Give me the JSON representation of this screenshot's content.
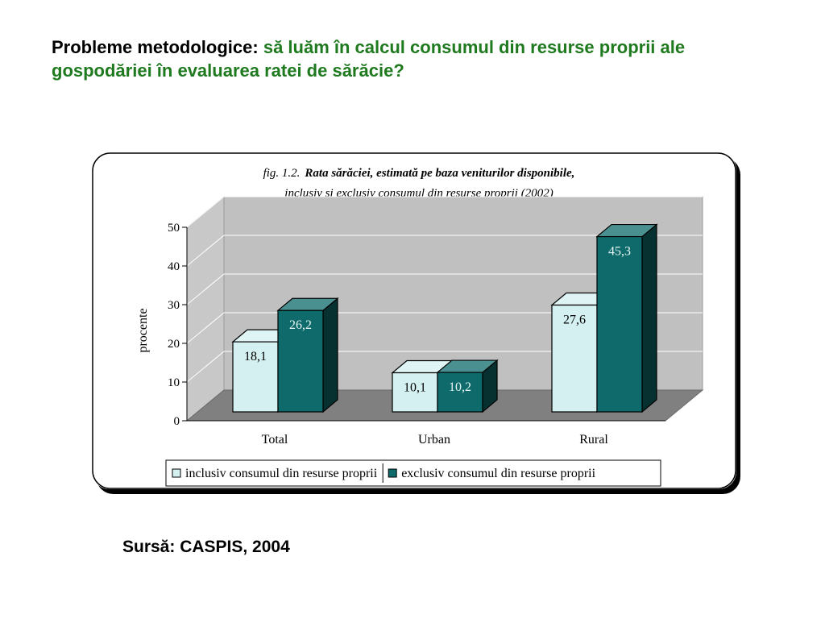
{
  "slide": {
    "title_lead": "Probleme metodologice:",
    "title_rest": "să luăm în calcul consumul din resurse proprii ale gospodăriei în evaluarea ratei de sărăcie?",
    "source": "Sursă: CASPIS, 2004"
  },
  "chart_data": {
    "type": "bar",
    "title_prefix": "fig. 1.2.",
    "title_line1": "Rata sărăciei, estimată pe baza veniturilor disponibile,",
    "title_line2": "inclusiv şi exclusiv consumul din resurse proprii (2002)",
    "categories": [
      "Total",
      "Urban",
      "Rural"
    ],
    "series": [
      {
        "name": "inclusiv consumul din resurse proprii",
        "values": [
          18.1,
          10.1,
          27.6
        ],
        "labels": [
          "18,1",
          "10,1",
          "27,6"
        ],
        "color": "#d4f0f0",
        "label_color": "#000000"
      },
      {
        "name": "exclusiv consumul din resurse proprii",
        "values": [
          26.2,
          10.2,
          45.3
        ],
        "labels": [
          "26,2",
          "10,2",
          "45,3"
        ],
        "color": "#0f6b6b",
        "label_color": "#e6f4f4"
      }
    ],
    "ylabel": "procente",
    "xlabel": "",
    "ylim": [
      0,
      50
    ],
    "yticks": [
      0,
      10,
      20,
      30,
      40,
      50
    ],
    "grid": true,
    "legend_position": "bottom",
    "style": "3d-clustered-column",
    "colors": {
      "wall": "#c0c0c0",
      "floor": "#808080"
    }
  }
}
